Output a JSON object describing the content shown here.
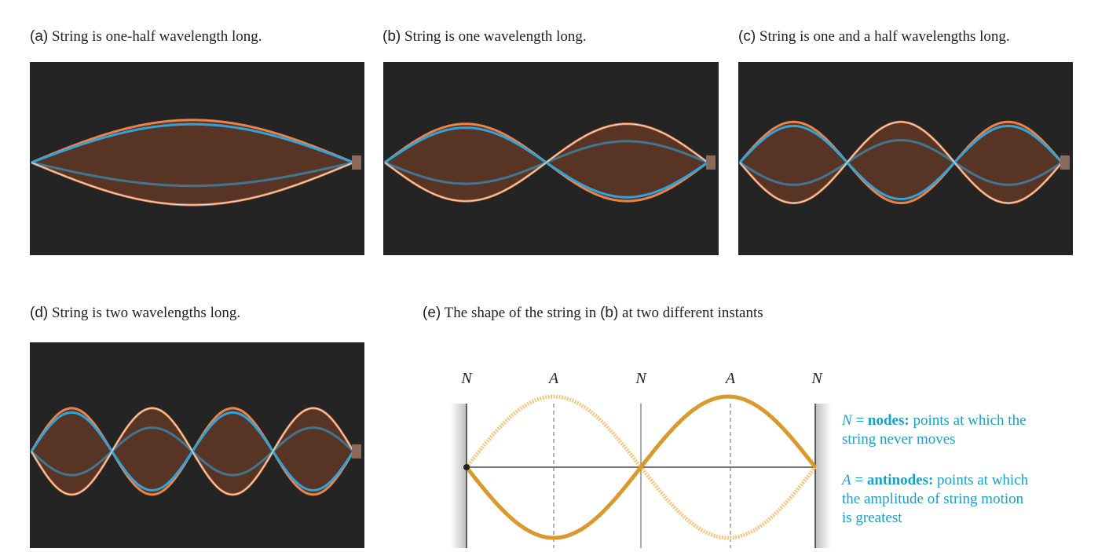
{
  "panels": [
    {
      "tag": "(a)",
      "caption": "String is one-half wavelength long.",
      "loops": 1
    },
    {
      "tag": "(b)",
      "caption": "String is one wavelength long.",
      "loops": 2
    },
    {
      "tag": "(c)",
      "caption": "String is one and a half wavelengths long.",
      "loops": 3
    },
    {
      "tag": "(d)",
      "caption": "String is two wavelengths long.",
      "loops": 4
    }
  ],
  "diagram": {
    "tag": "(e)",
    "caption_before": "The shape of the string in",
    "caption_ref": "(b)",
    "caption_after": "at two different instants",
    "point_labels": [
      "N",
      "A",
      "N",
      "A",
      "N"
    ],
    "legend": {
      "nodes_symbol": "N",
      "nodes_eq": "=",
      "nodes_term": "nodes:",
      "nodes_line1": "points at which the",
      "nodes_line2": "string never moves",
      "anti_symbol": "A",
      "anti_eq": "=",
      "anti_term": "antinodes:",
      "anti_line1": "points at which",
      "anti_line2": "the amplitude of string motion",
      "anti_line3": "is greatest"
    }
  },
  "colors": {
    "photo_bg": "#242424",
    "orange": "#e8834a",
    "blue": "#2fa4dc",
    "string_gold": "#d99a2b",
    "string_light": "#f3c77f",
    "legend_text": "#1aa0c8"
  }
}
